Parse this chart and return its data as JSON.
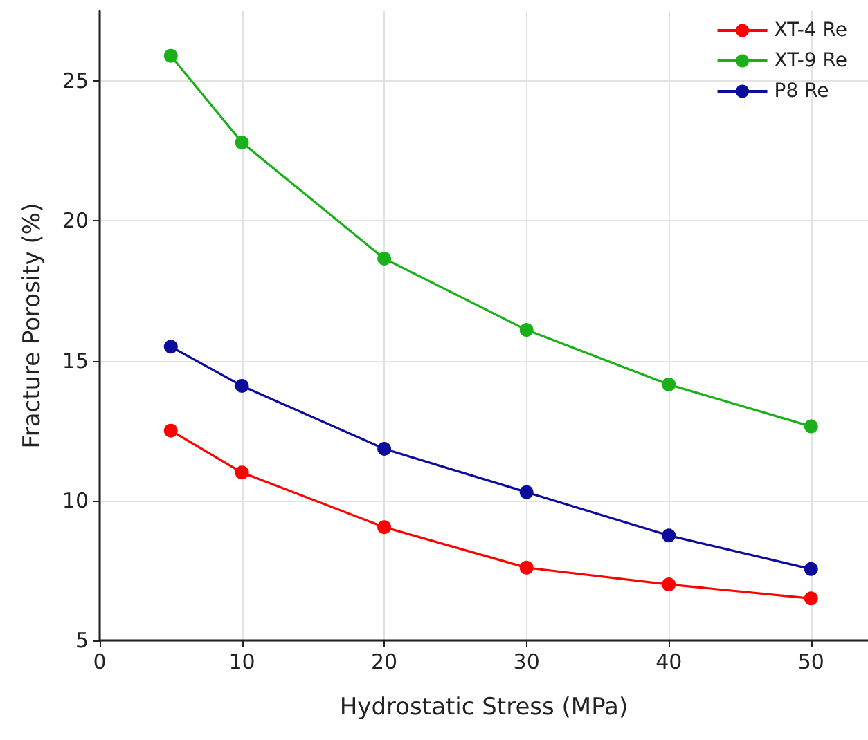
{
  "chart_data": {
    "type": "line",
    "xlabel": "Hydrostatic Stress (MPa)",
    "ylabel": "Fracture Porosity (%)",
    "x": [
      5,
      10,
      20,
      30,
      40,
      50
    ],
    "series": [
      {
        "name": "XT-4 Re",
        "color": "#ff0000",
        "values": [
          12.5,
          11.0,
          9.05,
          7.6,
          7.0,
          6.5
        ]
      },
      {
        "name": "XT-9 Re",
        "color": "#1ab01a",
        "values": [
          25.9,
          22.8,
          18.65,
          16.1,
          14.15,
          12.65
        ]
      },
      {
        "name": "P8 Re",
        "color": "#0c0c9c",
        "values": [
          15.5,
          14.1,
          11.85,
          10.3,
          8.75,
          7.55
        ]
      }
    ],
    "xlim": [
      0,
      54
    ],
    "xticks": [
      0,
      10,
      20,
      30,
      40,
      50
    ],
    "ylim": [
      5,
      27.5
    ],
    "yticks": [
      5,
      10,
      15,
      20,
      25
    ],
    "grid": true,
    "legend": "top right",
    "marker": "circle",
    "line_style": "solid"
  }
}
